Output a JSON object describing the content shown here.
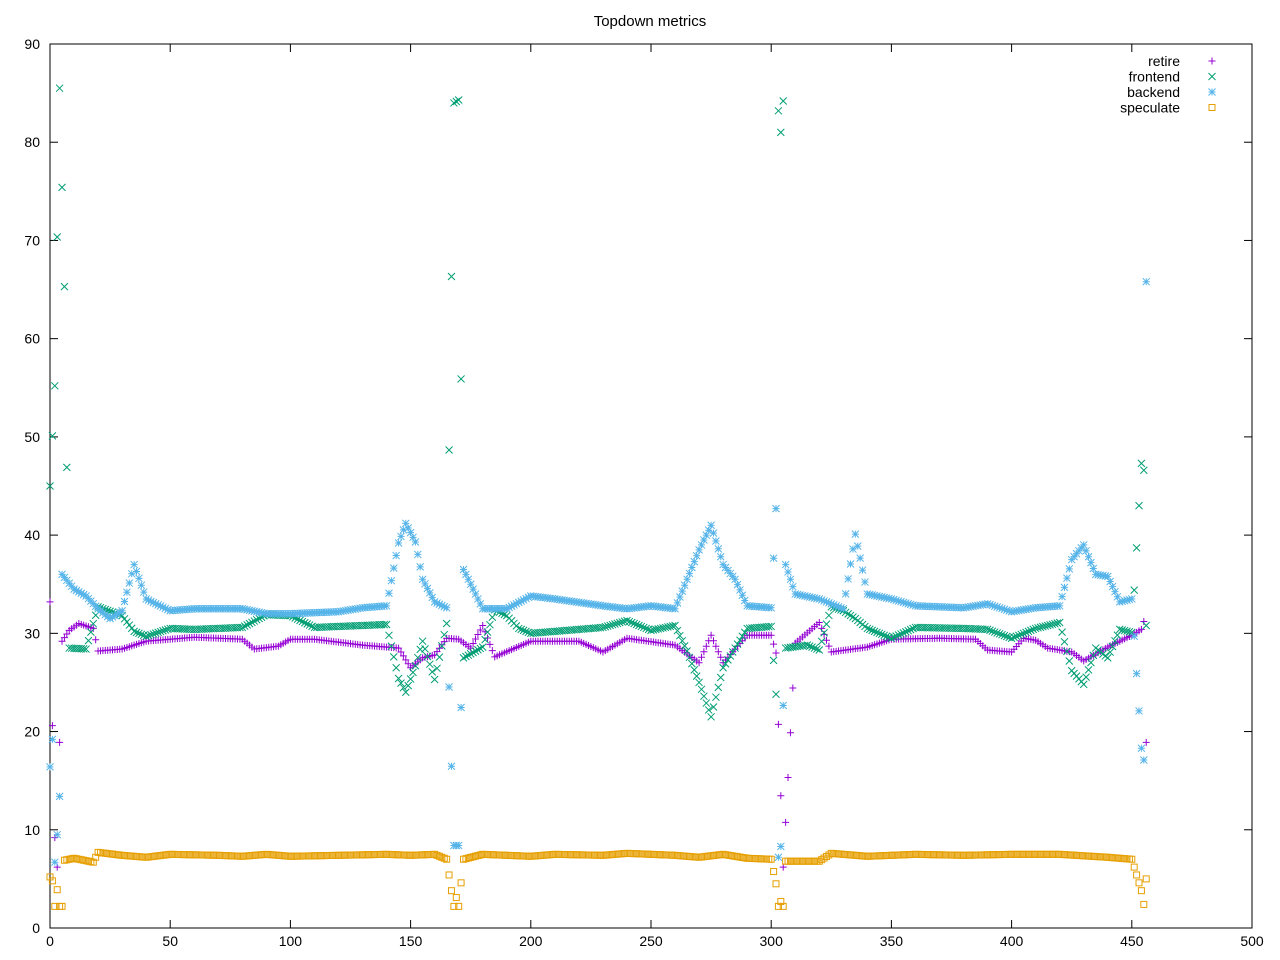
{
  "chart_data": {
    "type": "scatter",
    "title": "Topdown metrics",
    "xlabel": "",
    "ylabel": "",
    "xlim": [
      0,
      500
    ],
    "ylim": [
      0,
      90
    ],
    "xticks": [
      0,
      50,
      100,
      150,
      200,
      250,
      300,
      350,
      400,
      450,
      500
    ],
    "yticks": [
      0,
      10,
      20,
      30,
      40,
      50,
      60,
      70,
      80,
      90
    ],
    "grid": false,
    "legend": "top-right",
    "series": [
      {
        "name": "retire",
        "marker": "plus",
        "color": "#9400d3",
        "knots": [
          [
            0,
            33.2
          ],
          [
            1,
            20.6
          ],
          [
            2,
            9.2
          ],
          [
            3,
            6.2
          ],
          [
            4,
            18.9
          ],
          [
            5,
            29.2
          ],
          [
            8,
            30.3
          ],
          [
            12,
            31.0
          ],
          [
            18,
            30.5
          ],
          [
            20,
            28.2
          ],
          [
            30,
            28.4
          ],
          [
            40,
            29.2
          ],
          [
            60,
            29.6
          ],
          [
            80,
            29.4
          ],
          [
            85,
            28.4
          ],
          [
            95,
            28.7
          ],
          [
            100,
            29.4
          ],
          [
            110,
            29.4
          ],
          [
            130,
            28.8
          ],
          [
            140,
            28.6
          ],
          [
            145,
            28.5
          ],
          [
            150,
            26.5
          ],
          [
            155,
            27.5
          ],
          [
            160,
            27.8
          ],
          [
            165,
            29.5
          ],
          [
            170,
            29.4
          ],
          [
            175,
            28.5
          ],
          [
            180,
            30.8
          ],
          [
            185,
            27.6
          ],
          [
            200,
            29.2
          ],
          [
            220,
            29.2
          ],
          [
            230,
            28.1
          ],
          [
            240,
            29.5
          ],
          [
            260,
            28.8
          ],
          [
            270,
            27.0
          ],
          [
            275,
            29.8
          ],
          [
            280,
            27.0
          ],
          [
            290,
            29.8
          ],
          [
            300,
            29.8
          ],
          [
            302,
            28.0
          ],
          [
            305,
            6.2
          ],
          [
            310,
            29.0
          ],
          [
            320,
            31.1
          ],
          [
            325,
            28.1
          ],
          [
            340,
            28.6
          ],
          [
            350,
            29.4
          ],
          [
            370,
            29.5
          ],
          [
            385,
            29.4
          ],
          [
            390,
            28.3
          ],
          [
            400,
            28.1
          ],
          [
            405,
            29.5
          ],
          [
            410,
            29.3
          ],
          [
            415,
            28.5
          ],
          [
            425,
            28.1
          ],
          [
            430,
            27.2
          ],
          [
            440,
            28.6
          ],
          [
            450,
            29.8
          ],
          [
            454,
            30.4
          ],
          [
            455,
            31.2
          ],
          [
            456,
            18.9
          ]
        ],
        "spikes": []
      },
      {
        "name": "frontend",
        "marker": "cross",
        "color": "#009e73",
        "knots": [
          [
            0,
            45.0
          ],
          [
            2,
            55.2
          ],
          [
            4,
            85.5
          ],
          [
            6,
            65.3
          ],
          [
            8,
            28.5
          ],
          [
            15,
            28.4
          ],
          [
            20,
            32.7
          ],
          [
            30,
            31.8
          ],
          [
            35,
            30.2
          ],
          [
            40,
            29.7
          ],
          [
            50,
            30.5
          ],
          [
            60,
            30.4
          ],
          [
            80,
            30.6
          ],
          [
            90,
            31.9
          ],
          [
            100,
            31.8
          ],
          [
            110,
            30.6
          ],
          [
            130,
            30.8
          ],
          [
            140,
            30.9
          ],
          [
            145,
            25.4
          ],
          [
            148,
            24.0
          ],
          [
            152,
            26.7
          ],
          [
            155,
            29.2
          ],
          [
            160,
            25.3
          ],
          [
            165,
            31.0
          ],
          [
            168,
            84.0
          ],
          [
            170,
            84.3
          ],
          [
            172,
            27.5
          ],
          [
            180,
            28.6
          ],
          [
            185,
            32.4
          ],
          [
            190,
            31.8
          ],
          [
            195,
            30.5
          ],
          [
            200,
            30.0
          ],
          [
            230,
            30.6
          ],
          [
            240,
            31.3
          ],
          [
            250,
            30.3
          ],
          [
            260,
            30.8
          ],
          [
            265,
            28.2
          ],
          [
            270,
            25.0
          ],
          [
            275,
            21.5
          ],
          [
            280,
            26.5
          ],
          [
            290,
            30.5
          ],
          [
            300,
            30.7
          ],
          [
            302,
            23.8
          ],
          [
            303,
            83.2
          ],
          [
            304,
            81.0
          ],
          [
            305,
            84.2
          ],
          [
            306,
            28.5
          ],
          [
            315,
            28.8
          ],
          [
            320,
            28.3
          ],
          [
            325,
            32.7
          ],
          [
            330,
            32.3
          ],
          [
            335,
            31.5
          ],
          [
            340,
            30.5
          ],
          [
            350,
            29.5
          ],
          [
            360,
            30.6
          ],
          [
            380,
            30.5
          ],
          [
            390,
            30.4
          ],
          [
            400,
            29.5
          ],
          [
            410,
            30.5
          ],
          [
            420,
            31.1
          ],
          [
            425,
            26.2
          ],
          [
            430,
            24.8
          ],
          [
            435,
            28.5
          ],
          [
            440,
            27.5
          ],
          [
            445,
            30.4
          ],
          [
            450,
            30.1
          ],
          [
            454,
            47.3
          ],
          [
            455,
            46.6
          ],
          [
            456,
            30.8
          ]
        ],
        "spikes": []
      },
      {
        "name": "backend",
        "marker": "star",
        "color": "#56b4e9",
        "knots": [
          [
            0,
            16.4
          ],
          [
            1,
            19.2
          ],
          [
            2,
            6.7
          ],
          [
            3,
            9.5
          ],
          [
            4,
            13.4
          ],
          [
            5,
            36.0
          ],
          [
            10,
            34.5
          ],
          [
            15,
            33.8
          ],
          [
            20,
            32.5
          ],
          [
            25,
            31.5
          ],
          [
            30,
            32.3
          ],
          [
            35,
            37.0
          ],
          [
            40,
            33.5
          ],
          [
            50,
            32.3
          ],
          [
            60,
            32.5
          ],
          [
            80,
            32.5
          ],
          [
            90,
            32.0
          ],
          [
            100,
            32.0
          ],
          [
            120,
            32.2
          ],
          [
            130,
            32.6
          ],
          [
            140,
            32.8
          ],
          [
            145,
            39.2
          ],
          [
            148,
            41.2
          ],
          [
            152,
            39.3
          ],
          [
            155,
            35.5
          ],
          [
            160,
            33.2
          ],
          [
            165,
            32.6
          ],
          [
            168,
            8.4
          ],
          [
            170,
            8.4
          ],
          [
            172,
            36.5
          ],
          [
            180,
            32.5
          ],
          [
            190,
            32.5
          ],
          [
            200,
            33.8
          ],
          [
            210,
            33.5
          ],
          [
            230,
            32.8
          ],
          [
            240,
            32.5
          ],
          [
            250,
            32.8
          ],
          [
            260,
            32.5
          ],
          [
            270,
            38.5
          ],
          [
            275,
            41.0
          ],
          [
            280,
            37.0
          ],
          [
            285,
            35.5
          ],
          [
            290,
            32.8
          ],
          [
            300,
            32.6
          ],
          [
            302,
            42.7
          ],
          [
            303,
            7.2
          ],
          [
            304,
            8.3
          ],
          [
            306,
            37.0
          ],
          [
            310,
            34.0
          ],
          [
            320,
            33.5
          ],
          [
            330,
            32.5
          ],
          [
            335,
            40.1
          ],
          [
            340,
            34.0
          ],
          [
            350,
            33.5
          ],
          [
            360,
            32.8
          ],
          [
            380,
            32.6
          ],
          [
            390,
            33.0
          ],
          [
            400,
            32.2
          ],
          [
            410,
            32.6
          ],
          [
            420,
            32.8
          ],
          [
            425,
            37.5
          ],
          [
            430,
            39.0
          ],
          [
            435,
            36.0
          ],
          [
            440,
            35.8
          ],
          [
            445,
            33.2
          ],
          [
            450,
            33.5
          ],
          [
            454,
            18.3
          ],
          [
            455,
            17.1
          ],
          [
            456,
            65.8
          ]
        ],
        "spikes": []
      },
      {
        "name": "speculate",
        "marker": "square",
        "color": "#e69f00",
        "knots": [
          [
            0,
            5.2
          ],
          [
            1,
            4.8
          ],
          [
            2,
            2.2
          ],
          [
            3,
            3.9
          ],
          [
            4,
            2.2
          ],
          [
            5,
            2.2
          ],
          [
            6,
            6.9
          ],
          [
            10,
            7.1
          ],
          [
            18,
            6.7
          ],
          [
            20,
            7.7
          ],
          [
            30,
            7.4
          ],
          [
            40,
            7.2
          ],
          [
            50,
            7.5
          ],
          [
            70,
            7.4
          ],
          [
            80,
            7.3
          ],
          [
            90,
            7.5
          ],
          [
            100,
            7.3
          ],
          [
            120,
            7.4
          ],
          [
            140,
            7.5
          ],
          [
            150,
            7.4
          ],
          [
            160,
            7.5
          ],
          [
            165,
            7.0
          ],
          [
            168,
            2.2
          ],
          [
            169,
            3.1
          ],
          [
            170,
            2.2
          ],
          [
            172,
            7.0
          ],
          [
            180,
            7.5
          ],
          [
            190,
            7.4
          ],
          [
            200,
            7.3
          ],
          [
            210,
            7.5
          ],
          [
            230,
            7.4
          ],
          [
            240,
            7.6
          ],
          [
            260,
            7.4
          ],
          [
            270,
            7.2
          ],
          [
            280,
            7.5
          ],
          [
            290,
            7.1
          ],
          [
            300,
            7.0
          ],
          [
            302,
            4.5
          ],
          [
            303,
            2.2
          ],
          [
            304,
            2.7
          ],
          [
            305,
            2.2
          ],
          [
            306,
            6.8
          ],
          [
            320,
            6.8
          ],
          [
            325,
            7.6
          ],
          [
            340,
            7.3
          ],
          [
            360,
            7.5
          ],
          [
            380,
            7.4
          ],
          [
            400,
            7.5
          ],
          [
            420,
            7.5
          ],
          [
            440,
            7.2
          ],
          [
            450,
            7.0
          ],
          [
            454,
            3.8
          ],
          [
            455,
            2.4
          ],
          [
            456,
            5.0
          ]
        ],
        "spikes": []
      }
    ]
  }
}
